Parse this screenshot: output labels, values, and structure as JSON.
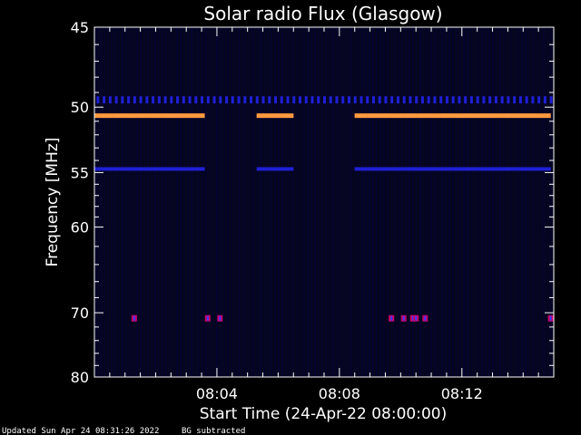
{
  "footer": {
    "updated_text": "Updated Sun Apr 24 08:31:26 2022",
    "bg_text": "BG subtracted"
  },
  "colors": {
    "background": "#000000",
    "plot_background": "#06061f",
    "axis": "#ffffff",
    "blue_band": "#1f1fd6",
    "orange_band": "#ff9a40",
    "magenta_spot": "#cc0066",
    "low_intensity": "#000040"
  },
  "chart_data": {
    "type": "heatmap",
    "title": "Solar radio Flux (Glasgow)",
    "xlabel": "Start Time (24-Apr-22 08:00:00)",
    "ylabel": "Frequency [MHz]",
    "x_unit": "minutes after 08:00:00",
    "xlim": [
      0,
      15
    ],
    "ylim": [
      45,
      80
    ],
    "y_scale": "reciprocal",
    "x_ticks": [
      {
        "value": 4,
        "label": "08:04"
      },
      {
        "value": 8,
        "label": "08:08"
      },
      {
        "value": 12,
        "label": "08:12"
      }
    ],
    "y_ticks": [
      {
        "value": 45,
        "label": "45"
      },
      {
        "value": 50,
        "label": "50"
      },
      {
        "value": 55,
        "label": "55"
      },
      {
        "value": 60,
        "label": "60"
      },
      {
        "value": 70,
        "label": "70"
      },
      {
        "value": 80,
        "label": "80"
      }
    ],
    "bands": [
      {
        "intensity": "medium",
        "color": "#1f1fd6",
        "freq_mhz": 49.5,
        "time_ranges": [
          [
            0.1,
            14.9
          ]
        ],
        "pattern": "ticks"
      },
      {
        "intensity": "high",
        "color": "#ff9a40",
        "freq_mhz": 50.6,
        "time_ranges": [
          [
            0.0,
            3.7
          ],
          [
            5.3,
            6.5
          ],
          [
            8.5,
            14.9
          ]
        ],
        "pattern": "dashes"
      },
      {
        "intensity": "medium",
        "color": "#1f1fd6",
        "freq_mhz": 54.7,
        "time_ranges": [
          [
            0.0,
            3.7
          ],
          [
            5.3,
            6.5
          ],
          [
            8.5,
            14.9
          ]
        ],
        "pattern": "dashes"
      }
    ],
    "spots": [
      {
        "time_min": 1.3,
        "freq_mhz": 70.7
      },
      {
        "time_min": 3.7,
        "freq_mhz": 70.7
      },
      {
        "time_min": 4.1,
        "freq_mhz": 70.7
      },
      {
        "time_min": 9.7,
        "freq_mhz": 70.7
      },
      {
        "time_min": 10.1,
        "freq_mhz": 70.7
      },
      {
        "time_min": 10.4,
        "freq_mhz": 70.7
      },
      {
        "time_min": 10.5,
        "freq_mhz": 70.7
      },
      {
        "time_min": 10.8,
        "freq_mhz": 70.7
      },
      {
        "time_min": 14.9,
        "freq_mhz": 70.7
      }
    ],
    "grid": false,
    "legend": "none"
  }
}
